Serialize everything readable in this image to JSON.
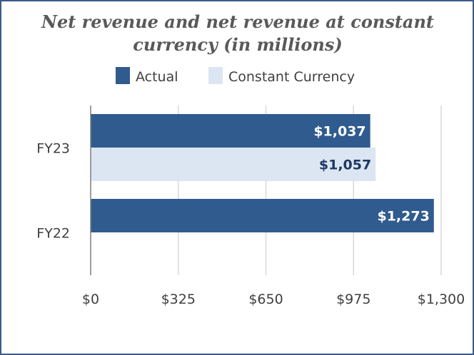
{
  "chart_data": {
    "type": "bar",
    "orientation": "horizontal",
    "title_lines": [
      "Net revenue and net revenue at constant",
      "currency (in millions)"
    ],
    "categories": [
      "FY23",
      "FY22"
    ],
    "series": [
      {
        "name": "Actual",
        "color": "#305b8e",
        "label_color": "#ffffff",
        "values": [
          1037,
          1273
        ],
        "labels": [
          "$1,037",
          "$1,273"
        ]
      },
      {
        "name": "Constant Currency",
        "color": "#dce6f2",
        "label_color": "#1f3864",
        "values": [
          1057,
          null
        ],
        "labels": [
          "$1,057",
          null
        ]
      }
    ],
    "xlim": [
      0,
      1300
    ],
    "xticks": [
      0,
      325,
      650,
      975,
      1300
    ],
    "xtick_labels": [
      "$0",
      "$325",
      "$650",
      "$975",
      "$1,300"
    ],
    "grid": true,
    "legend_position": "top"
  },
  "colors": {
    "border": "#3b5a8c",
    "grid": "#d9d9d9",
    "axis": "#7f7f7f"
  }
}
